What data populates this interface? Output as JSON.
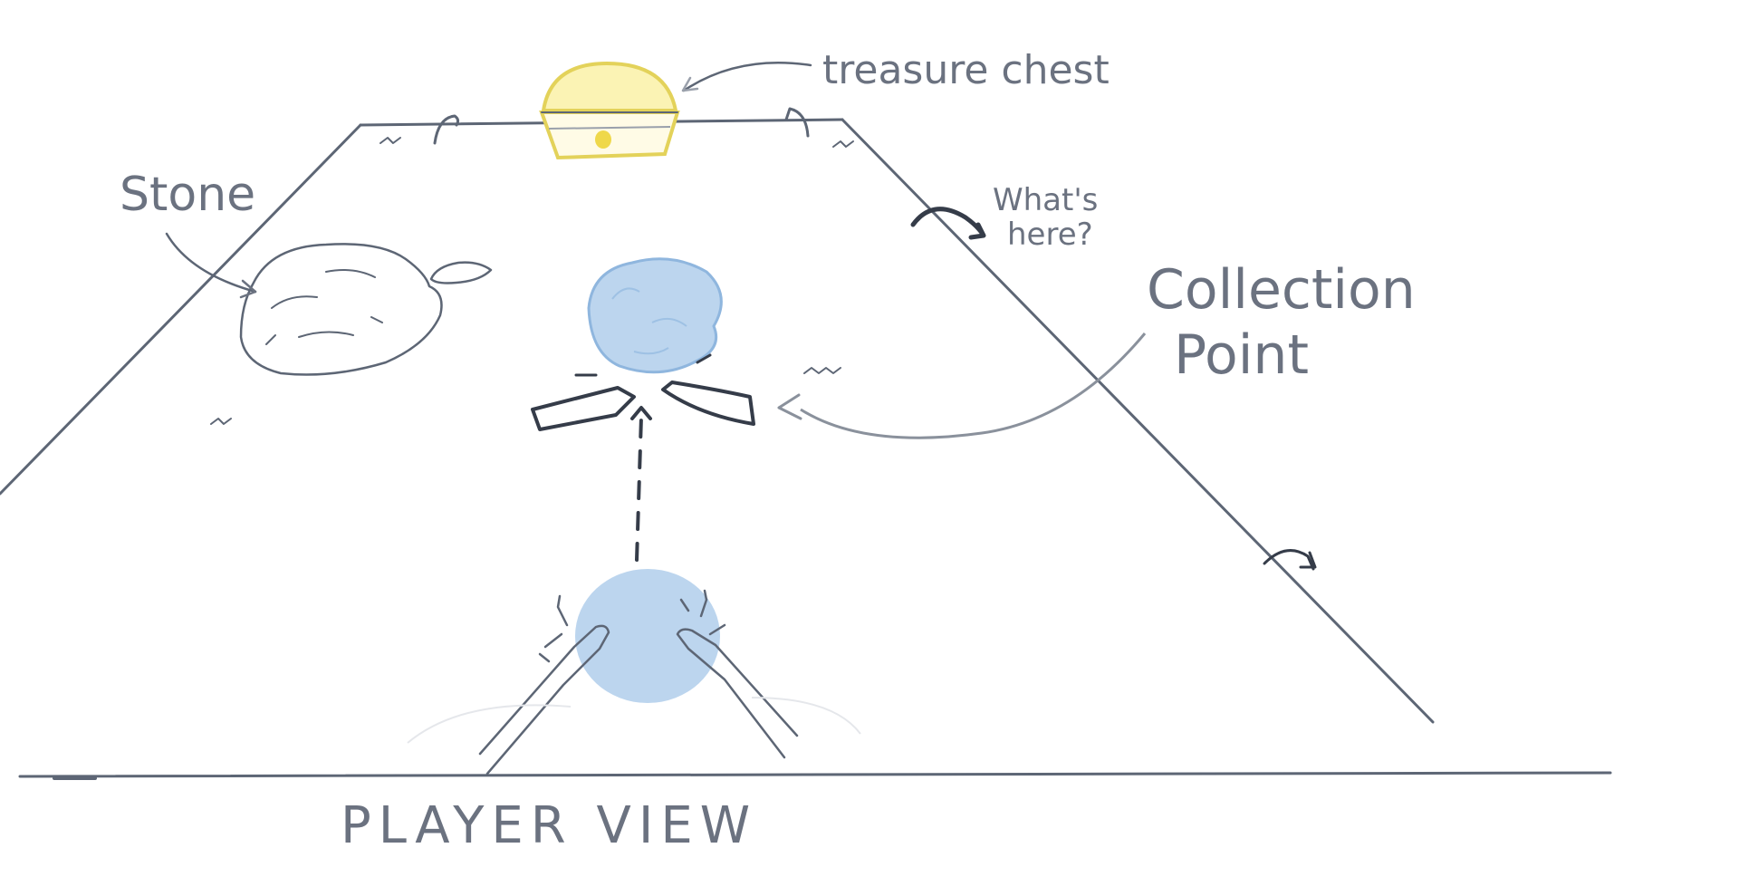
{
  "labels": {
    "treasure": "treasure chest",
    "stone": "Stone",
    "whats_here_1": "What's",
    "whats_here_2": "here?",
    "collection_1": "Collection",
    "collection_2": "Point",
    "player_view": "PLAYER VIEW"
  },
  "colors": {
    "ink": "#5d6675",
    "ink_dark": "#353c49",
    "chest_gold": "#e3d25a",
    "ball_blue": "#b9d2ea",
    "ball_edge": "#8fb6de"
  }
}
